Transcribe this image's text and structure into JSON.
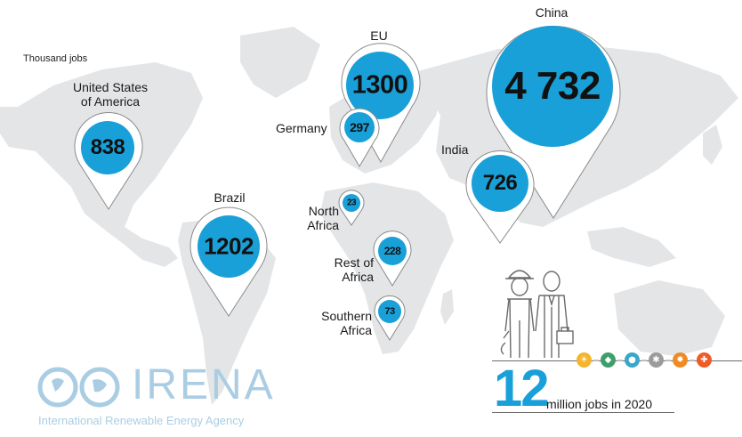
{
  "unit_label": "Thousand jobs",
  "regions": [
    {
      "id": "usa",
      "label": "United States\nof America",
      "value": "838",
      "kind": "small",
      "color": "#1aa0d8"
    },
    {
      "id": "eu",
      "label": "EU",
      "value": "1300",
      "kind": "outline",
      "color": "#1aa0d8"
    },
    {
      "id": "germany",
      "label": "Germany",
      "value": "297",
      "kind": "tiny",
      "color": "#1aa0d8"
    },
    {
      "id": "china",
      "label": "China",
      "value": "4 732",
      "kind": "outline",
      "color": "#1aa0d8"
    },
    {
      "id": "india",
      "label": "India",
      "value": "726",
      "kind": "small",
      "color": "#1aa0d8"
    },
    {
      "id": "brazil",
      "label": "Brazil",
      "value": "1202",
      "kind": "small",
      "color": "#1aa0d8"
    },
    {
      "id": "north-africa",
      "label": "North\nAfrica",
      "value": "23",
      "kind": "tiny",
      "color": "#1aa0d8"
    },
    {
      "id": "rest-of-africa",
      "label": "Rest of\nAfrica",
      "value": "228",
      "kind": "tiny",
      "color": "#1aa0d8"
    },
    {
      "id": "southern-africa",
      "label": "Southern\nAfrica",
      "value": "73",
      "kind": "tiny",
      "color": "#1aa0d8"
    }
  ],
  "total": {
    "number": "12",
    "caption": "million jobs in 2020"
  },
  "technologies": [
    {
      "icon": "solar-icon",
      "color": "#f3b52b",
      "glyph": "☀"
    },
    {
      "icon": "bioenergy-icon",
      "color": "#3e9f6b",
      "glyph": "◆"
    },
    {
      "icon": "hydropower-icon",
      "color": "#3aa7c9",
      "glyph": "●"
    },
    {
      "icon": "wind-icon",
      "color": "#9b9b9b",
      "glyph": "✱"
    },
    {
      "icon": "geothermal-icon",
      "color": "#f08a24",
      "glyph": "✹"
    },
    {
      "icon": "other-renewables-icon",
      "color": "#ef5b27",
      "glyph": "✚"
    }
  ],
  "logo": {
    "name": "IRENA",
    "tagline": "International Renewable Energy Agency"
  },
  "colors": {
    "pin_fill": "#1aa0d8",
    "land": "#e4e5e7",
    "logo": "#aacde3",
    "accent": "#1aa0d8"
  }
}
